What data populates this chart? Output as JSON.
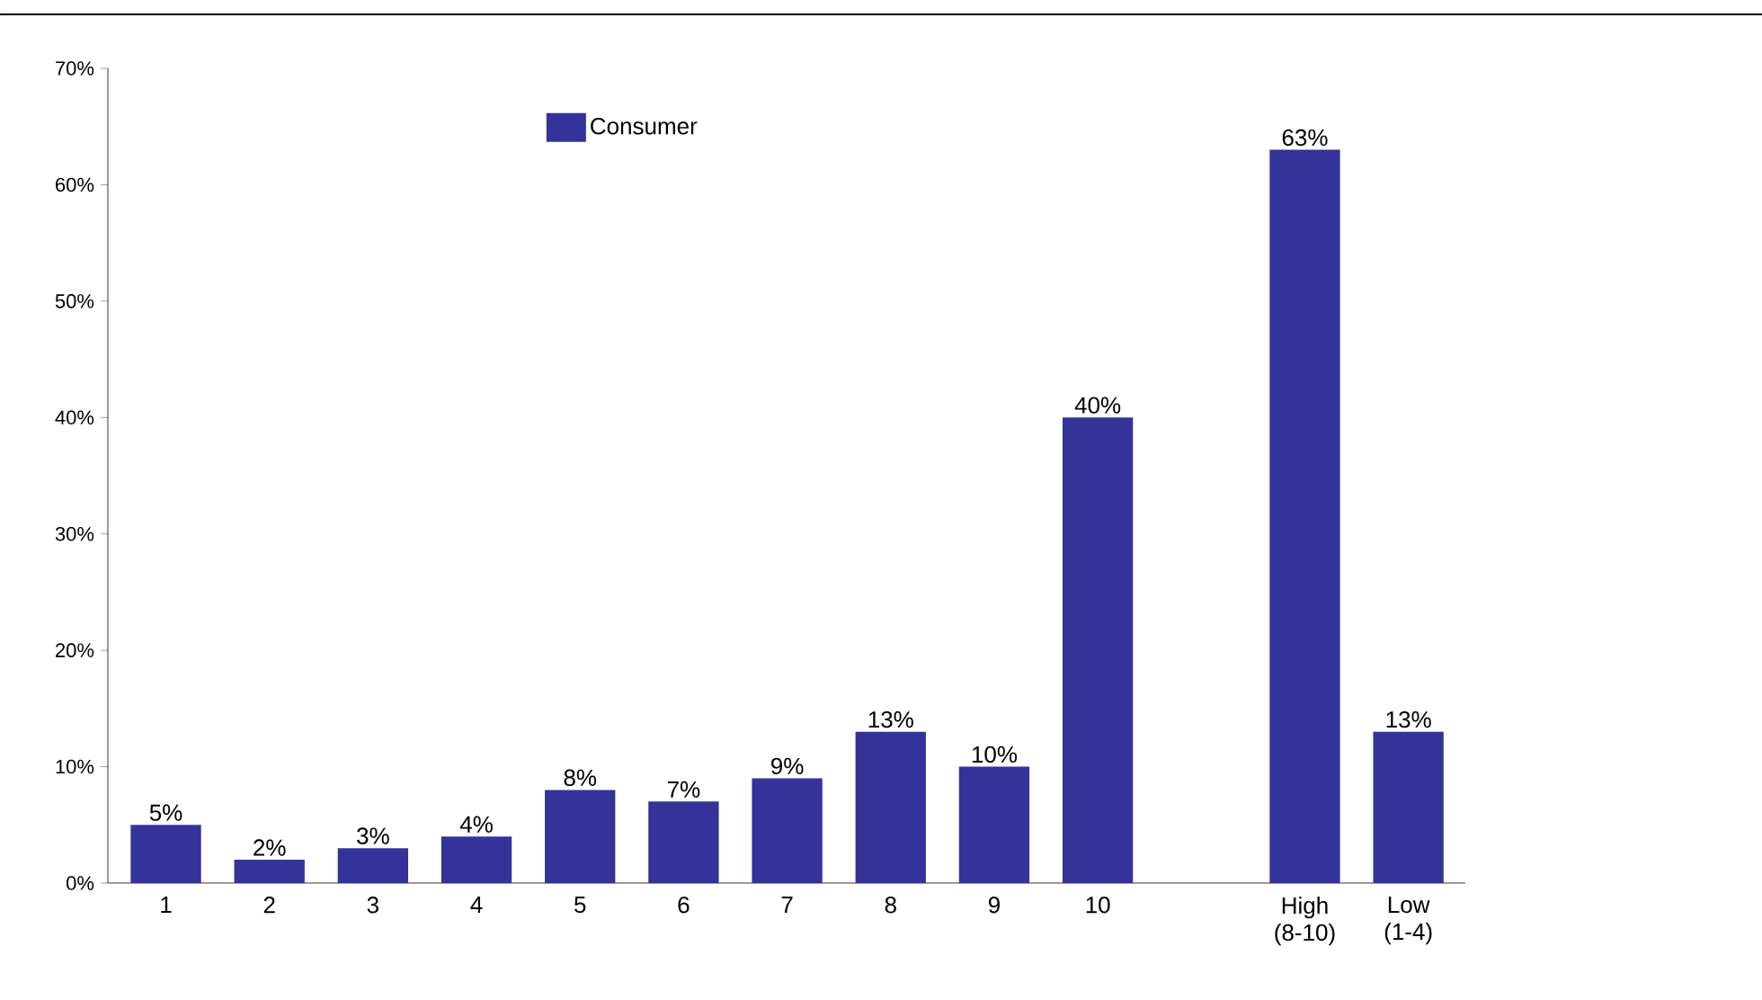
{
  "chart_data": {
    "type": "bar",
    "categories": [
      "1",
      "2",
      "3",
      "4",
      "5",
      "6",
      "7",
      "8",
      "9",
      "10",
      null,
      "High (8-10)",
      "Low (1-4)"
    ],
    "series": [
      {
        "name": "Consumer",
        "color": "#333399",
        "values": [
          5,
          2,
          3,
          4,
          8,
          7,
          9,
          13,
          10,
          40,
          null,
          63,
          13
        ],
        "value_labels": [
          "5%",
          "2%",
          "3%",
          "4%",
          "8%",
          "7%",
          "9%",
          "13%",
          "10%",
          "40%",
          null,
          "63%",
          "13%"
        ]
      }
    ],
    "ylim": [
      0,
      70
    ],
    "yticks": [
      {
        "value": 0,
        "label": "0%"
      },
      {
        "value": 10,
        "label": "10%"
      },
      {
        "value": 20,
        "label": "20%"
      },
      {
        "value": 30,
        "label": "30%"
      },
      {
        "value": 40,
        "label": "40%"
      },
      {
        "value": 50,
        "label": "50%"
      },
      {
        "value": 60,
        "label": "60%"
      },
      {
        "value": 70,
        "label": "70%"
      }
    ],
    "grid": false,
    "legend": "top"
  }
}
